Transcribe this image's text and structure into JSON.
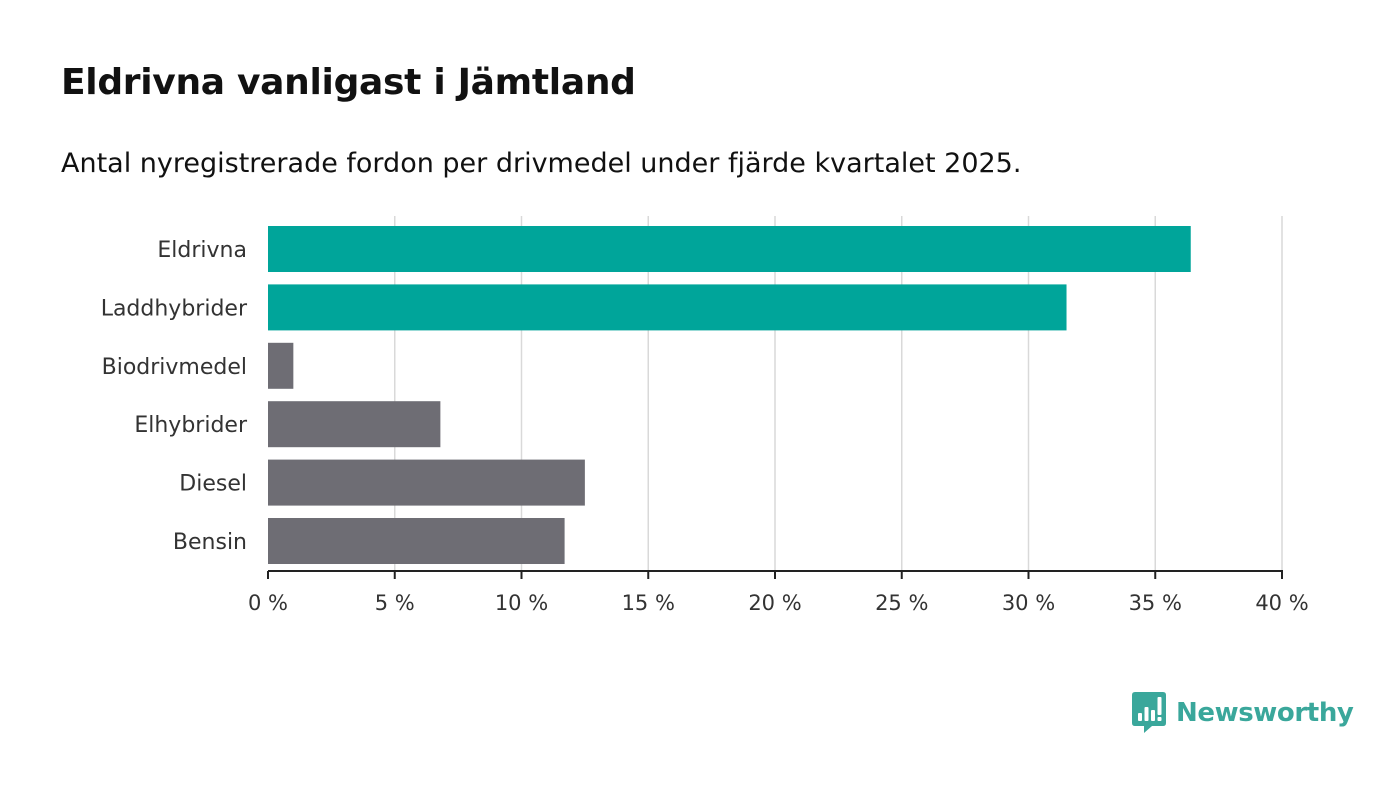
{
  "chart_data": {
    "type": "bar",
    "orientation": "horizontal",
    "title": "Eldrivna vanligast i Jämtland",
    "subtitle": "Antal nyregistrerade fordon per drivmedel under fjärde kvartalet 2025.",
    "categories": [
      "Eldrivna",
      "Laddhybrider",
      "Biodrivmedel",
      "Elhybrider",
      "Diesel",
      "Bensin"
    ],
    "values": [
      36.4,
      31.5,
      1.0,
      6.8,
      12.5,
      11.7
    ],
    "highlighted": [
      true,
      true,
      false,
      false,
      false,
      false
    ],
    "xlim": [
      0,
      40
    ],
    "xticks": [
      0,
      5,
      10,
      15,
      20,
      25,
      30,
      35,
      40
    ],
    "xtick_labels": [
      "0 %",
      "5 %",
      "10 %",
      "15 %",
      "20 %",
      "25 %",
      "30 %",
      "35 %",
      "40 %"
    ],
    "xlabel": "",
    "ylabel": "",
    "grid": "vertical",
    "colors": {
      "highlight": "#00a59a",
      "default": "#6e6d74",
      "grid": "#d9d9d9",
      "axis": "#222222"
    }
  },
  "brand": {
    "name": "Newsworthy",
    "logo_icon": "bar-chart-bubble-icon",
    "color": "#3aa79b"
  }
}
